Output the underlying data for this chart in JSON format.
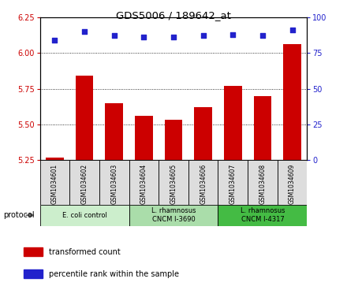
{
  "title": "GDS5006 / 189642_at",
  "samples": [
    "GSM1034601",
    "GSM1034602",
    "GSM1034603",
    "GSM1034604",
    "GSM1034605",
    "GSM1034606",
    "GSM1034607",
    "GSM1034608",
    "GSM1034609"
  ],
  "transformed_counts": [
    5.27,
    5.84,
    5.65,
    5.56,
    5.53,
    5.62,
    5.77,
    5.7,
    6.06
  ],
  "percentile_ranks": [
    84,
    90,
    87,
    86,
    86,
    87,
    88,
    87,
    91
  ],
  "ylim_left": [
    5.25,
    6.25
  ],
  "ylim_right": [
    0,
    100
  ],
  "yticks_left": [
    5.25,
    5.5,
    5.75,
    6.0,
    6.25
  ],
  "yticks_right": [
    0,
    25,
    50,
    75,
    100
  ],
  "bar_color": "#cc0000",
  "dot_color": "#2222cc",
  "group_colors": [
    "#cceecc",
    "#aaddaa",
    "#44bb44"
  ],
  "groups": [
    {
      "label": "E. coli control",
      "start": 0,
      "end": 3
    },
    {
      "label": "L. rhamnosus\nCNCM I-3690",
      "start": 3,
      "end": 6
    },
    {
      "label": "L. rhamnosus\nCNCM I-4317",
      "start": 6,
      "end": 9
    }
  ],
  "legend_bar_label": "transformed count",
  "legend_dot_label": "percentile rank within the sample",
  "protocol_label": "protocol",
  "sample_box_color": "#dddddd",
  "plot_bg_color": "#ffffff"
}
